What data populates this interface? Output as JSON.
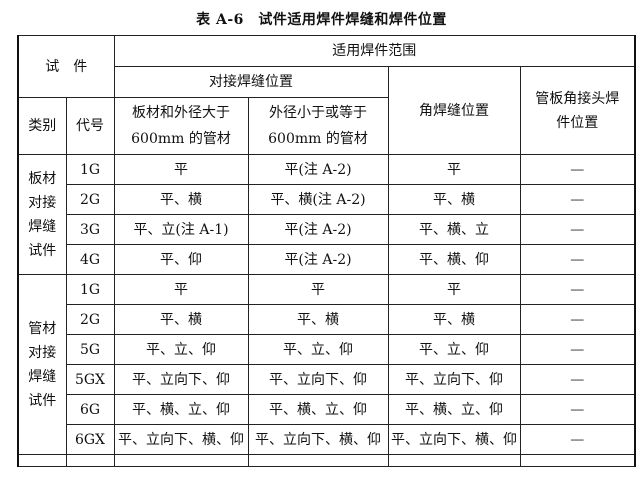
{
  "title": "表 A-6　试件适用焊件焊缝和焊件位置",
  "header": {
    "specimen": "试　件",
    "range": "适用焊件范围",
    "butt": "对接焊缝位置",
    "fillet": "角焊缝位置",
    "tube_plate": "管板角接头焊件位置",
    "category": "类别",
    "code": "代号",
    "large": "板材和外径大于600mm 的管材",
    "small": "外径小于或等于600mm 的管材"
  },
  "groups": [
    {
      "category": "板材对接焊缝试件",
      "rows": [
        {
          "code": "1G",
          "large": "平",
          "small": "平(注 A-2)",
          "fillet": "平",
          "tube_plate": "—"
        },
        {
          "code": "2G",
          "large": "平、横",
          "small": "平、横(注 A-2)",
          "fillet": "平、横",
          "tube_plate": "—"
        },
        {
          "code": "3G",
          "large": "平、立(注 A-1)",
          "small": "平(注 A-2)",
          "fillet": "平、横、立",
          "tube_plate": "—"
        },
        {
          "code": "4G",
          "large": "平、仰",
          "small": "平(注 A-2)",
          "fillet": "平、横、仰",
          "tube_plate": "—"
        }
      ]
    },
    {
      "category": "管材对接焊缝试件",
      "rows": [
        {
          "code": "1G",
          "large": "平",
          "small": "平",
          "fillet": "平",
          "tube_plate": "—"
        },
        {
          "code": "2G",
          "large": "平、横",
          "small": "平、横",
          "fillet": "平、横",
          "tube_plate": "—"
        },
        {
          "code": "5G",
          "large": "平、立、仰",
          "small": "平、立、仰",
          "fillet": "平、立、仰",
          "tube_plate": "—"
        },
        {
          "code": "5GX",
          "large": "平、立向下、仰",
          "small": "平、立向下、仰",
          "fillet": "平、立向下、仰",
          "tube_plate": "—"
        },
        {
          "code": "6G",
          "large": "平、横、立、仰",
          "small": "平、横、立、仰",
          "fillet": "平、横、立、仰",
          "tube_plate": "—"
        },
        {
          "code": "6GX",
          "large": "平、立向下、横、仰",
          "small": "平、立向下、横、仰",
          "fillet": "平、立向下、横、仰",
          "tube_plate": "—"
        }
      ]
    }
  ]
}
